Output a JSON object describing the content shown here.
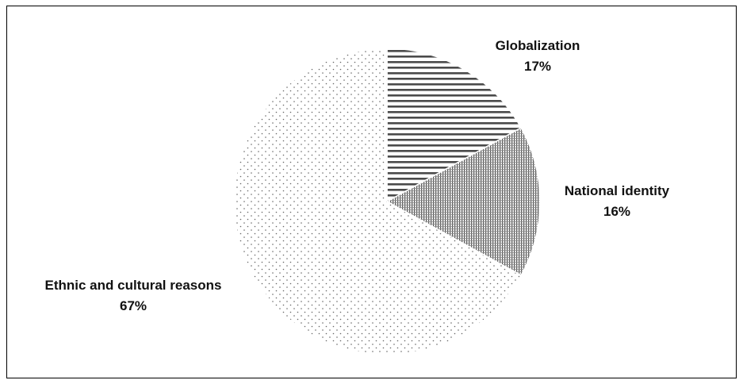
{
  "chart_data": {
    "type": "pie",
    "title": "",
    "slices": [
      {
        "label": "Globalization",
        "value": 17,
        "value_label": "17%",
        "pattern": "horizontal-stripes"
      },
      {
        "label": "National identity",
        "value": 16,
        "value_label": "16%",
        "pattern": "dense-vertical-hatch"
      },
      {
        "label": "Ethnic and cultural reasons",
        "value": 67,
        "value_label": "67%",
        "pattern": "sparse-dots"
      }
    ],
    "start_angle": "12 o'clock",
    "direction": "clockwise",
    "legend": "none",
    "label_placement": "outside",
    "colors": {
      "pattern_ink": "#555555",
      "slice_edge": "#ffffff",
      "frame": "#000000",
      "text": "#111111"
    }
  }
}
